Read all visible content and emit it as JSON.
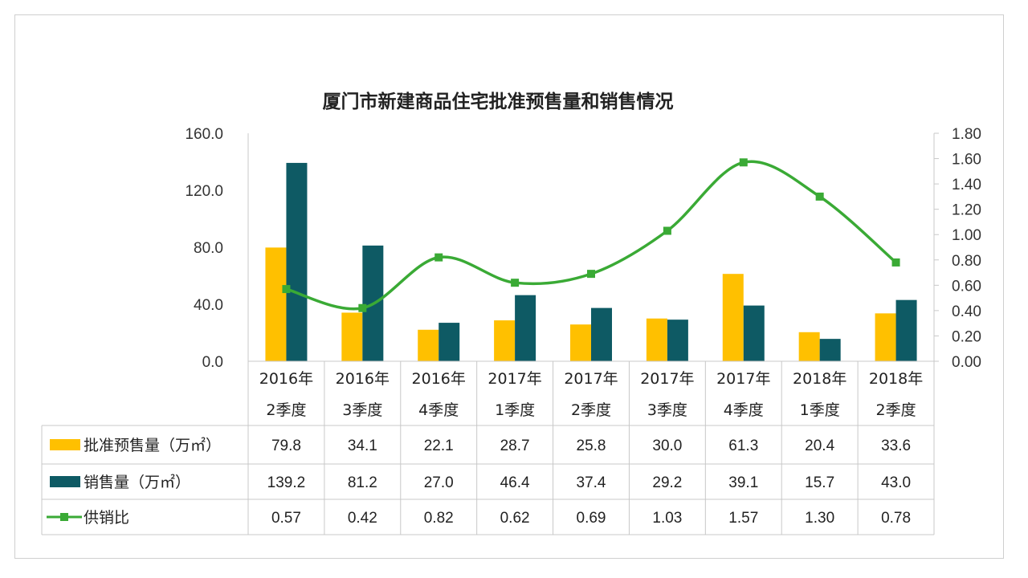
{
  "chart_data": {
    "type": "bar",
    "title": "厦门市新建商品住宅批准预售量和销售情况",
    "categories": [
      [
        "2016年",
        "2季度"
      ],
      [
        "2016年",
        "3季度"
      ],
      [
        "2016年",
        "4季度"
      ],
      [
        "2017年",
        "1季度"
      ],
      [
        "2017年",
        "2季度"
      ],
      [
        "2017年",
        "3季度"
      ],
      [
        "2017年",
        "4季度"
      ],
      [
        "2018年",
        "1季度"
      ],
      [
        "2018年",
        "2季度"
      ]
    ],
    "series": [
      {
        "name": "批准预售量（万㎡）",
        "type": "bar",
        "axis": "left",
        "color": "#FFC000",
        "values": [
          79.8,
          34.1,
          22.1,
          28.7,
          25.8,
          30.0,
          61.3,
          20.4,
          33.6
        ],
        "labels": [
          "79.8",
          "34.1",
          "22.1",
          "28.7",
          "25.8",
          "30.0",
          "61.3",
          "20.4",
          "33.6"
        ]
      },
      {
        "name": "销售量（万㎡）",
        "type": "bar",
        "axis": "left",
        "color": "#0E5A64",
        "values": [
          139.2,
          81.2,
          27.0,
          46.4,
          37.4,
          29.2,
          39.1,
          15.7,
          43.0
        ],
        "labels": [
          "139.2",
          "81.2",
          "27.0",
          "46.4",
          "37.4",
          "29.2",
          "39.1",
          "15.7",
          "43.0"
        ]
      },
      {
        "name": "供销比",
        "type": "line",
        "axis": "right",
        "color": "#3AAA35",
        "values": [
          0.57,
          0.42,
          0.82,
          0.62,
          0.69,
          1.03,
          1.57,
          1.3,
          0.78
        ],
        "labels": [
          "0.57",
          "0.42",
          "0.82",
          "0.62",
          "0.69",
          "1.03",
          "1.57",
          "1.30",
          "0.78"
        ]
      }
    ],
    "y_left": {
      "ylim": [
        0,
        160
      ],
      "ticks": [
        "0.0",
        "40.0",
        "80.0",
        "120.0",
        "160.0"
      ],
      "tick_values": [
        0,
        40,
        80,
        120,
        160
      ]
    },
    "y_right": {
      "ylim": [
        0,
        1.8
      ],
      "ticks": [
        "0.00",
        "0.20",
        "0.40",
        "0.60",
        "0.80",
        "1.00",
        "1.20",
        "1.40",
        "1.60",
        "1.80"
      ],
      "tick_values": [
        0,
        0.2,
        0.4,
        0.6,
        0.8,
        1.0,
        1.2,
        1.4,
        1.6,
        1.8
      ]
    },
    "grid": false,
    "legend": "data-table",
    "smooth_line": true
  }
}
